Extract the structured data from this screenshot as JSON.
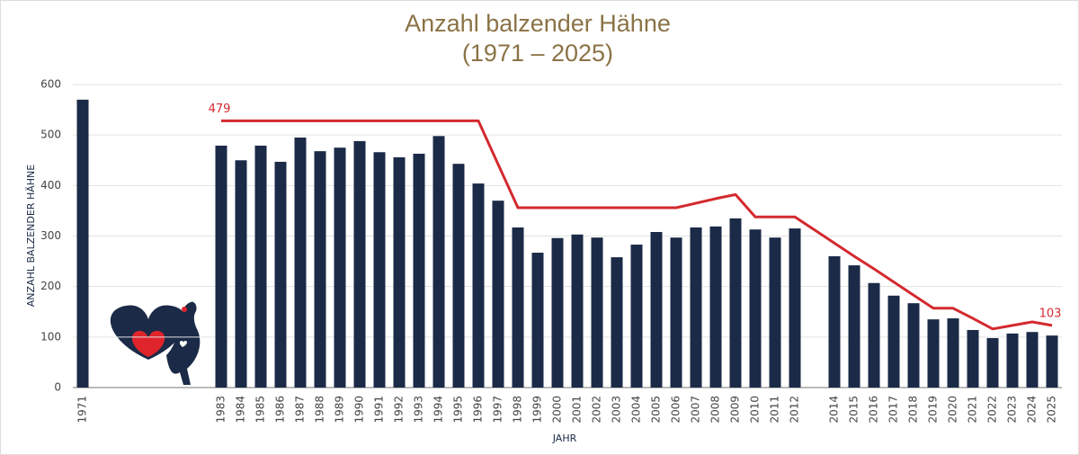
{
  "chart_data": {
    "type": "bar",
    "title": "Anzahl balzender Hähne",
    "subtitle": "(1971 – 2025)",
    "x_label": "JAHR",
    "y_label": "ANZAHL BALZENDER HÄHNE",
    "categories": [
      "1971",
      null,
      null,
      null,
      null,
      null,
      null,
      "1983",
      "1984",
      "1985",
      "1986",
      "1987",
      "1988",
      "1989",
      "1990",
      "1991",
      "1992",
      "1993",
      "1994",
      "1995",
      "1996",
      "1997",
      "1998",
      "1999",
      "2000",
      "2001",
      "2002",
      "2003",
      "2004",
      "2005",
      "2006",
      "2007",
      "2008",
      "2009",
      "2010",
      "2011",
      "2012",
      null,
      "2014",
      "2015",
      "2016",
      "2017",
      "2018",
      "2019",
      "2020",
      "2021",
      "2022",
      "2023",
      "2024",
      "2025"
    ],
    "series": [
      {
        "type": "bar",
        "color": "#1b2a47",
        "values": [
          570,
          null,
          null,
          null,
          null,
          null,
          null,
          479,
          450,
          479,
          447,
          495,
          468,
          475,
          488,
          466,
          456,
          463,
          498,
          443,
          404,
          370,
          317,
          267,
          296,
          303,
          297,
          258,
          283,
          308,
          297,
          317,
          319,
          335,
          313,
          297,
          315,
          null,
          260,
          242,
          207,
          182,
          167,
          135,
          137,
          114,
          98,
          107,
          110,
          103
        ],
        "value_labels": [
          null,
          null,
          null,
          null,
          null,
          null,
          null,
          "479",
          null,
          null,
          null,
          null,
          null,
          null,
          null,
          null,
          null,
          null,
          null,
          null,
          null,
          null,
          null,
          null,
          null,
          null,
          null,
          null,
          null,
          null,
          null,
          null,
          null,
          null,
          null,
          null,
          null,
          null,
          null,
          null,
          null,
          null,
          null,
          null,
          null,
          null,
          null,
          null,
          null,
          "103"
        ]
      },
      {
        "type": "line",
        "color": "#d32a2f",
        "values": [
          null,
          null,
          null,
          null,
          null,
          null,
          null,
          528,
          528,
          528,
          528,
          528,
          528,
          528,
          528,
          528,
          528,
          528,
          528,
          528,
          528,
          442,
          356,
          356,
          356,
          356,
          356,
          356,
          356,
          356,
          356,
          365,
          374,
          382,
          338,
          338,
          338,
          312,
          286,
          260,
          235,
          209,
          183,
          157,
          157,
          137,
          116,
          123,
          130,
          123
        ]
      }
    ],
    "ylim": [
      0,
      600
    ],
    "yticks": [
      0,
      100,
      200,
      300,
      400,
      500,
      600
    ],
    "grid": true
  }
}
